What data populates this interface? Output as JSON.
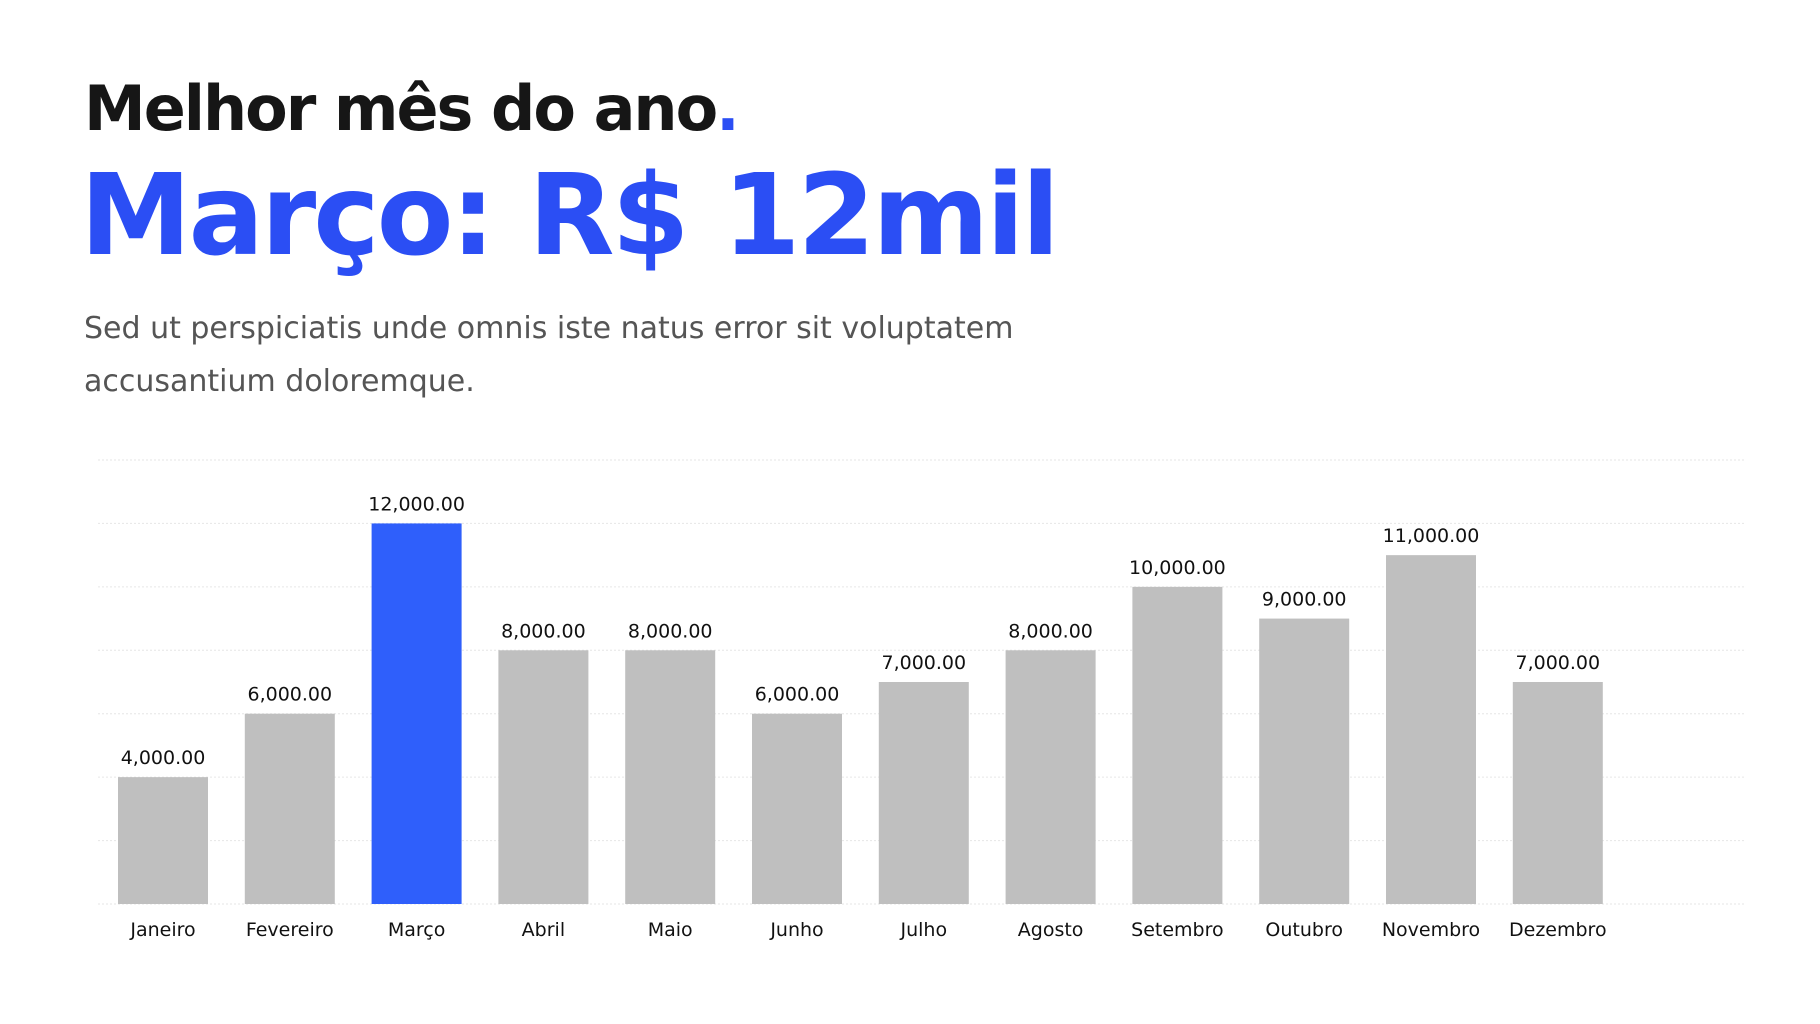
{
  "header": {
    "title": "Melhor mês do ano",
    "title_dot": ".",
    "highlight": "Março: R$ 12mil",
    "description": "Sed ut perspiciatis unde omnis iste natus error sit voluptatem accusantium doloremque."
  },
  "colors": {
    "accent": "#2b4ef4",
    "highlight_bar": "#2f5ffb",
    "bar": "#bfbfbf",
    "grid": "#e6e6e6"
  },
  "chart_data": {
    "type": "bar",
    "title": "",
    "xlabel": "",
    "ylabel": "",
    "categories": [
      "Janeiro",
      "Fevereiro",
      "Março",
      "Abril",
      "Maio",
      "Junho",
      "Julho",
      "Agosto",
      "Setembro",
      "Outubro",
      "Novembro",
      "Dezembro"
    ],
    "values": [
      4000,
      6000,
      12000,
      8000,
      8000,
      6000,
      7000,
      8000,
      10000,
      9000,
      11000,
      7000
    ],
    "data_labels": [
      "4,000.00",
      "6,000.00",
      "12,000.00",
      "8,000.00",
      "8,000.00",
      "6,000.00",
      "7,000.00",
      "8,000.00",
      "10,000.00",
      "9,000.00",
      "11,000.00",
      "7,000.00"
    ],
    "highlight_index": 2,
    "ylim": [
      0,
      14000
    ],
    "grid": true,
    "y_axis_visible": false
  }
}
